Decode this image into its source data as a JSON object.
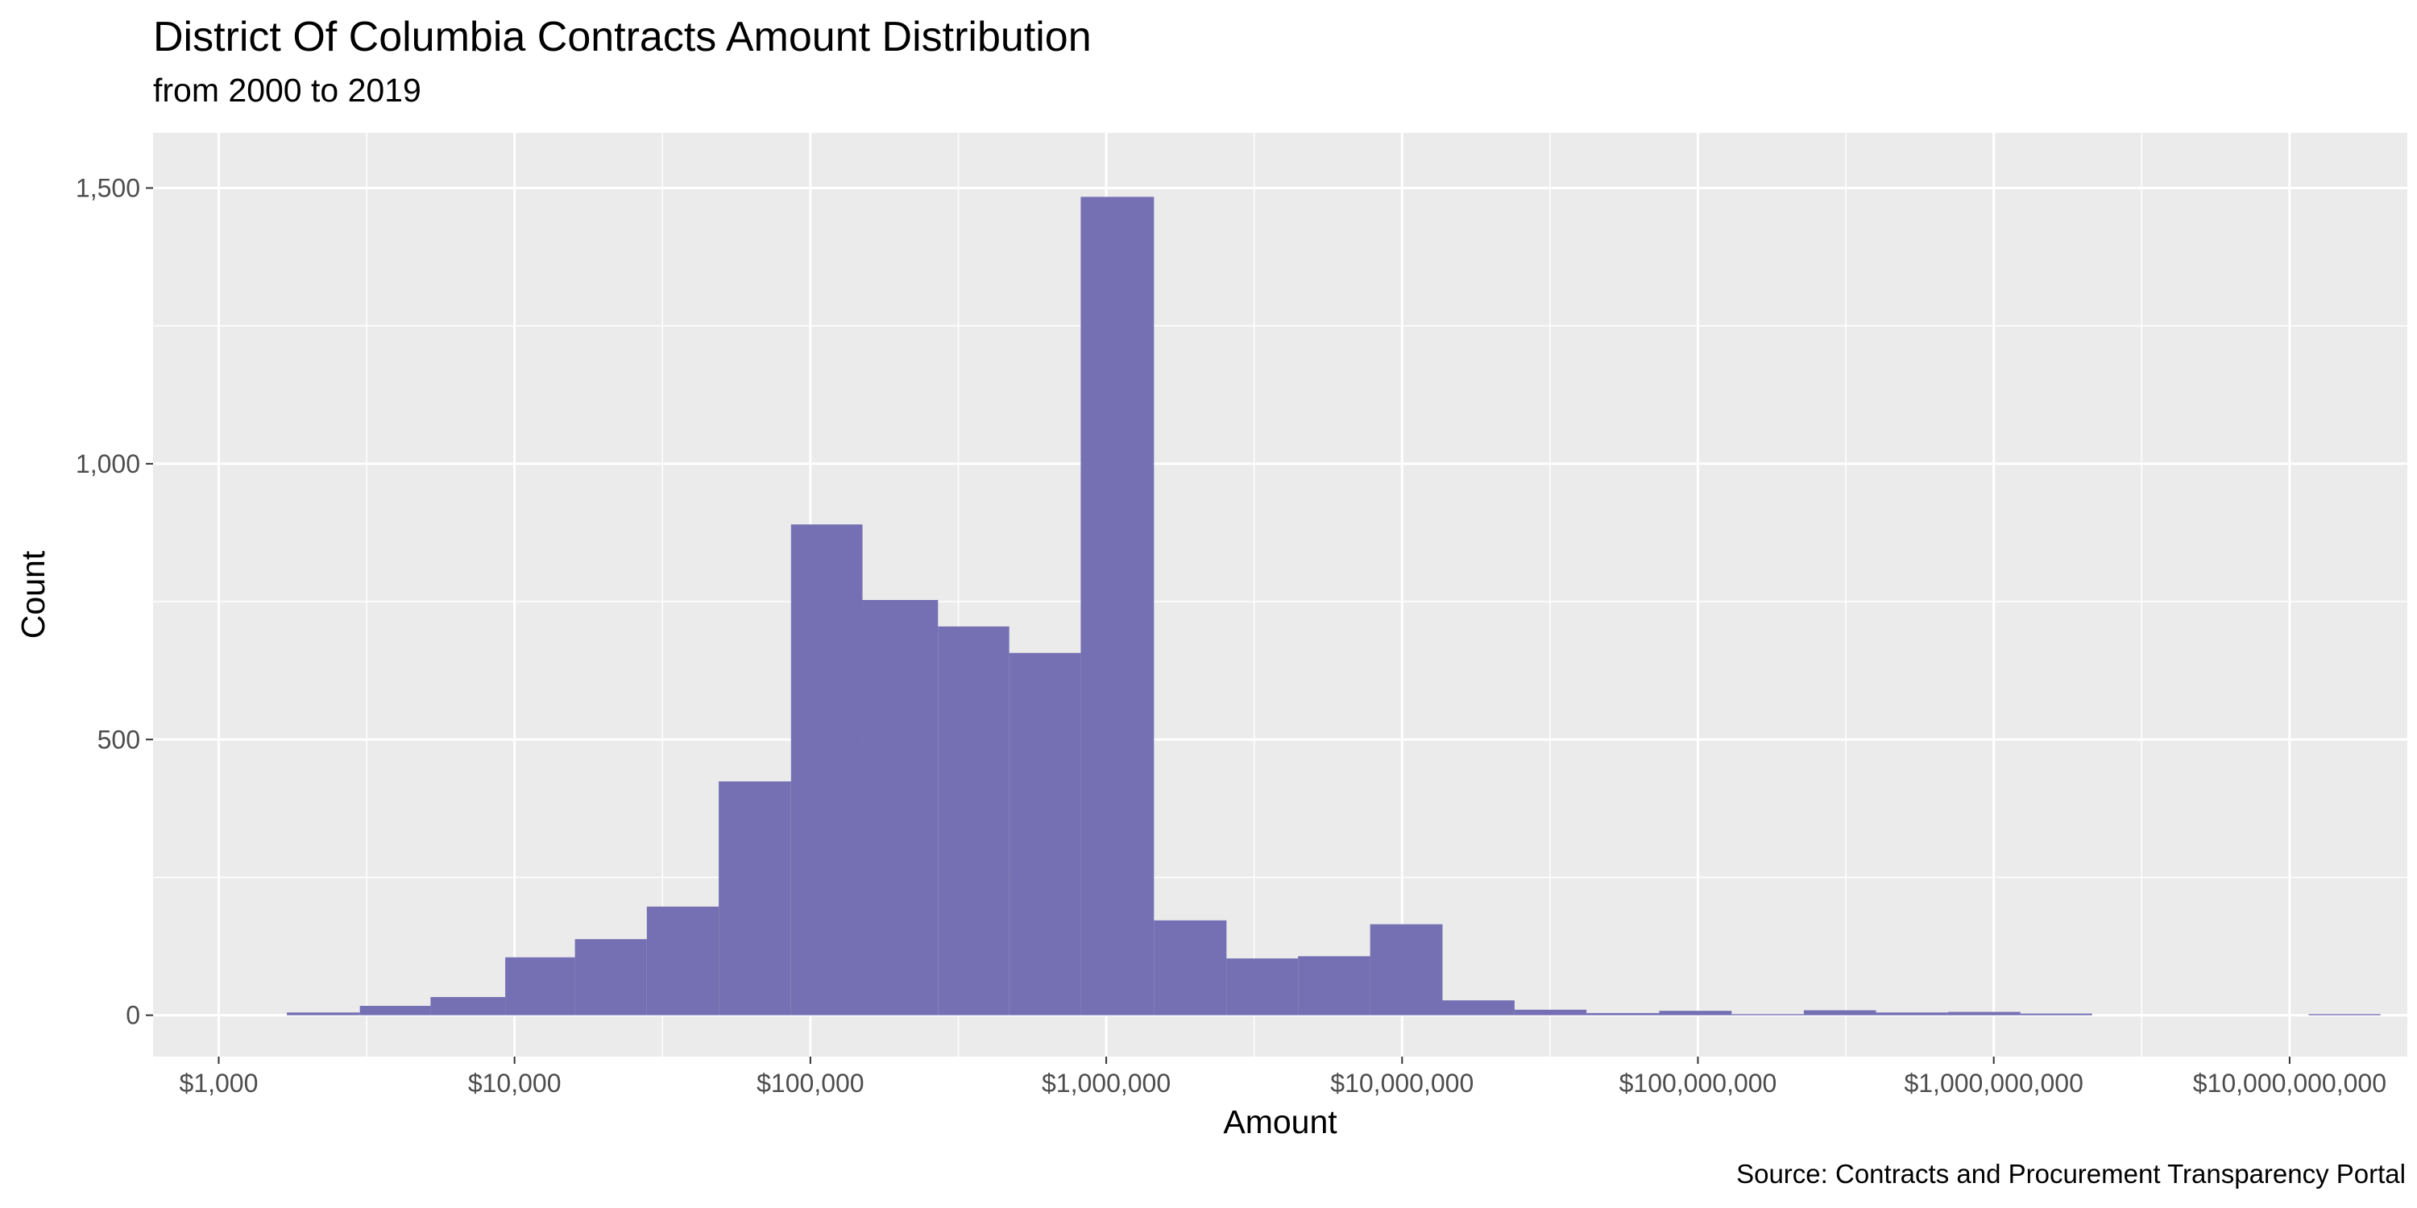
{
  "chart_data": {
    "type": "bar",
    "title": "District Of Columbia Contracts Amount Distribution",
    "subtitle": "from 2000 to 2019",
    "caption": "Source: Contracts and Procurement Transparency Portal",
    "xlabel": "Amount",
    "ylabel": "Count",
    "x_scale": "log10",
    "xlim": [
      600,
      25000000000
    ],
    "ylim": [
      -75,
      1600
    ],
    "x_ticks": [
      {
        "value": 1000,
        "label": "$1,000"
      },
      {
        "value": 10000,
        "label": "$10,000"
      },
      {
        "value": 100000,
        "label": "$100,000"
      },
      {
        "value": 1000000,
        "label": "$1,000,000"
      },
      {
        "value": 10000000,
        "label": "$10,000,000"
      },
      {
        "value": 100000000,
        "label": "$100,000,000"
      },
      {
        "value": 1000000000,
        "label": "$1,000,000,000"
      },
      {
        "value": 10000000000,
        "label": "$10,000,000,000"
      }
    ],
    "y_ticks": [
      {
        "value": 0,
        "label": "0"
      },
      {
        "value": 500,
        "label": "500"
      },
      {
        "value": 1000,
        "label": "1,000"
      },
      {
        "value": 1500,
        "label": "1,500"
      }
    ],
    "grid": true,
    "bar_color": "#7570b3",
    "panel_color": "#ebebeb",
    "bins": [
      {
        "x0": 1700,
        "x1": 3000,
        "count": 5
      },
      {
        "x0": 3000,
        "x1": 5200,
        "count": 17
      },
      {
        "x0": 5200,
        "x1": 9300,
        "count": 33
      },
      {
        "x0": 9300,
        "x1": 16000,
        "count": 105
      },
      {
        "x0": 16000,
        "x1": 28000,
        "count": 138
      },
      {
        "x0": 28000,
        "x1": 49000,
        "count": 197
      },
      {
        "x0": 49000,
        "x1": 86000,
        "count": 424
      },
      {
        "x0": 86000,
        "x1": 150000,
        "count": 890
      },
      {
        "x0": 150000,
        "x1": 270000,
        "count": 753
      },
      {
        "x0": 270000,
        "x1": 470000,
        "count": 705
      },
      {
        "x0": 470000,
        "x1": 820000,
        "count": 657
      },
      {
        "x0": 820000,
        "x1": 1450000,
        "count": 1484
      },
      {
        "x0": 1450000,
        "x1": 2550000,
        "count": 172
      },
      {
        "x0": 2550000,
        "x1": 4450000,
        "count": 103
      },
      {
        "x0": 4450000,
        "x1": 7800000,
        "count": 107
      },
      {
        "x0": 7800000,
        "x1": 13700000,
        "count": 165
      },
      {
        "x0": 13700000,
        "x1": 24000000,
        "count": 27
      },
      {
        "x0": 24000000,
        "x1": 42000000,
        "count": 10
      },
      {
        "x0": 42000000,
        "x1": 74000000,
        "count": 4
      },
      {
        "x0": 74000000,
        "x1": 130000000,
        "count": 8
      },
      {
        "x0": 130000000,
        "x1": 228000000,
        "count": 2
      },
      {
        "x0": 228000000,
        "x1": 400000000,
        "count": 9
      },
      {
        "x0": 400000000,
        "x1": 700000000,
        "count": 5
      },
      {
        "x0": 700000000,
        "x1": 1230000000,
        "count": 6
      },
      {
        "x0": 1230000000,
        "x1": 2150000000,
        "count": 3
      },
      {
        "x0": 11600000000,
        "x1": 20300000000,
        "count": 2
      }
    ]
  }
}
